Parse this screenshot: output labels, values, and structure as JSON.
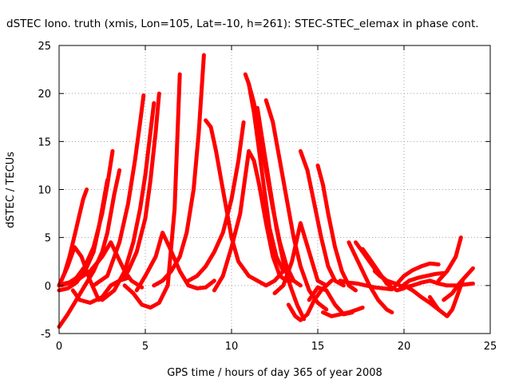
{
  "chart_data": {
    "type": "line",
    "title": "dSTEC Iono. truth (xmis, Lon=105, Lat=-10, h=261): STEC-STEC_elemax in phase cont.",
    "xlabel": "GPS time / hours of day 365 of year 2008",
    "ylabel": "dSTEC  / TECUs",
    "xlim": [
      0,
      25
    ],
    "ylim": [
      -5,
      25
    ],
    "xticks": [
      "0",
      "5",
      "10",
      "15",
      "20",
      "25"
    ],
    "yticks": [
      "-5",
      "0",
      "5",
      "10",
      "15",
      "20",
      "25"
    ],
    "grid": true,
    "legend": "none",
    "color": "#ff0000",
    "series": [
      {
        "x": [
          0.0,
          0.3,
          0.6,
          0.9,
          1.2,
          1.4,
          1.6
        ],
        "y": [
          0.0,
          1.2,
          3.0,
          5.2,
          7.5,
          9.0,
          10.0
        ]
      },
      {
        "x": [
          0.0,
          0.5,
          1.0,
          1.5,
          2.0,
          2.3,
          2.6,
          2.8
        ],
        "y": [
          -0.5,
          -0.3,
          0.3,
          1.5,
          3.5,
          6.0,
          9.0,
          11.0
        ]
      },
      {
        "x": [
          0.1,
          0.5,
          1.0,
          1.5,
          2.0,
          2.5,
          2.8,
          3.1
        ],
        "y": [
          0.0,
          0.2,
          0.8,
          2.0,
          4.0,
          7.5,
          10.5,
          14.0
        ]
      },
      {
        "x": [
          0.0,
          0.5,
          1.0,
          1.5,
          2.0,
          2.5,
          2.8,
          3.0,
          3.2,
          3.5
        ],
        "y": [
          -4.3,
          -3.0,
          -1.5,
          0.0,
          1.5,
          3.5,
          5.5,
          7.5,
          9.5,
          12.0
        ]
      },
      {
        "x": [
          0.0,
          0.5,
          0.9,
          1.3,
          1.8,
          2.3
        ],
        "y": [
          0.0,
          2.0,
          4.0,
          3.0,
          0.5,
          -1.5
        ]
      },
      {
        "x": [
          0.8,
          1.2,
          1.8,
          2.5,
          3.0,
          3.5,
          4.0
        ],
        "y": [
          -0.5,
          -1.5,
          -1.8,
          -1.2,
          0.0,
          0.5,
          0.8
        ]
      },
      {
        "x": [
          0.3,
          1.0,
          1.8,
          2.5,
          3.0,
          3.4,
          3.8,
          4.2,
          4.8
        ],
        "y": [
          0.2,
          0.5,
          1.5,
          3.0,
          4.5,
          3.0,
          1.5,
          0.5,
          -0.2
        ]
      },
      {
        "x": [
          2.0,
          2.8,
          3.5,
          4.0,
          4.4,
          4.7,
          4.9
        ],
        "y": [
          0.0,
          1.0,
          4.5,
          8.5,
          13.0,
          17.0,
          19.8
        ]
      },
      {
        "x": [
          2.5,
          3.2,
          3.8,
          4.3,
          4.7,
          5.0,
          5.2,
          5.5
        ],
        "y": [
          -1.5,
          -0.5,
          1.5,
          4.5,
          8.0,
          11.5,
          14.5,
          19.0
        ]
      },
      {
        "x": [
          3.0,
          3.5,
          4.0,
          4.5,
          5.0,
          5.3,
          5.6,
          5.8
        ],
        "y": [
          0.0,
          0.5,
          1.5,
          3.5,
          7.0,
          11.0,
          16.0,
          20.0
        ]
      },
      {
        "x": [
          3.8,
          4.3,
          4.8,
          5.3,
          5.8,
          6.3,
          6.7,
          7.0
        ],
        "y": [
          0.0,
          -0.8,
          -2.0,
          -2.3,
          -1.8,
          0.0,
          8.0,
          22.0
        ]
      },
      {
        "x": [
          4.5,
          5.0,
          5.6,
          6.0,
          6.4,
          7.0,
          7.5,
          8.0,
          8.5,
          9.0
        ],
        "y": [
          -0.5,
          1.0,
          3.0,
          5.5,
          4.0,
          1.5,
          0.0,
          -0.3,
          -0.2,
          0.5
        ]
      },
      {
        "x": [
          5.5,
          6.0,
          6.5,
          7.0,
          7.4,
          7.8,
          8.1,
          8.4
        ],
        "y": [
          0.0,
          0.5,
          1.5,
          3.0,
          5.5,
          10.0,
          16.0,
          24.0
        ]
      },
      {
        "x": [
          8.5,
          8.8,
          9.1,
          9.4,
          9.7,
          10.0,
          10.4,
          11.0,
          11.5,
          12.0,
          12.5,
          13.0
        ],
        "y": [
          17.2,
          16.5,
          14.0,
          11.0,
          8.0,
          5.0,
          2.5,
          1.0,
          0.5,
          0.0,
          0.5,
          1.5
        ]
      },
      {
        "x": [
          9.0,
          9.5,
          10.0,
          10.5,
          11.0,
          11.3,
          11.6,
          12.0,
          12.4,
          12.8,
          13.2,
          13.5
        ],
        "y": [
          -0.5,
          1.0,
          4.0,
          7.5,
          14.0,
          13.0,
          10.5,
          6.5,
          3.0,
          1.0,
          0.5,
          0.5
        ]
      },
      {
        "x": [
          7.5,
          8.0,
          8.5,
          9.0,
          9.5,
          10.0,
          10.4,
          10.7
        ],
        "y": [
          0.5,
          1.0,
          2.0,
          3.5,
          5.5,
          9.0,
          13.0,
          17.0
        ]
      },
      {
        "x": [
          10.8,
          11.0,
          11.3,
          11.6,
          11.9,
          12.2,
          12.6,
          13.0
        ],
        "y": [
          22.0,
          21.0,
          18.0,
          14.0,
          10.0,
          6.0,
          3.0,
          1.5
        ]
      },
      {
        "x": [
          11.0,
          11.3,
          11.6,
          12.0,
          12.4,
          12.8,
          13.2,
          13.6,
          14.0
        ],
        "y": [
          21.0,
          19.0,
          16.0,
          12.0,
          8.0,
          4.5,
          2.0,
          0.5,
          0.0
        ]
      },
      {
        "x": [
          11.5,
          11.8,
          12.2,
          12.6,
          13.0,
          13.4,
          13.8,
          14.2
        ],
        "y": [
          18.5,
          15.0,
          10.5,
          6.0,
          2.5,
          0.0,
          -2.0,
          -3.5
        ]
      },
      {
        "x": [
          12.0,
          12.4,
          12.8,
          13.2,
          13.6,
          14.0,
          14.5,
          15.0,
          15.5
        ],
        "y": [
          19.3,
          17.0,
          13.0,
          9.0,
          5.0,
          2.0,
          -0.5,
          -1.8,
          -2.5
        ]
      },
      {
        "x": [
          12.5,
          13.0,
          13.5,
          14.0,
          14.5,
          15.0,
          15.5
        ],
        "y": [
          -0.8,
          0.0,
          2.5,
          6.5,
          3.5,
          0.5,
          0.0
        ]
      },
      {
        "x": [
          13.3,
          13.7,
          14.0,
          14.4,
          14.8,
          15.2,
          15.8
        ],
        "y": [
          -2.0,
          -3.2,
          -3.6,
          -3.0,
          -1.5,
          -0.5,
          0.5
        ]
      },
      {
        "x": [
          14.0,
          14.4,
          14.8,
          15.2,
          15.6,
          16.0,
          16.5
        ],
        "y": [
          14.0,
          12.0,
          8.5,
          5.0,
          2.0,
          0.5,
          0.0
        ]
      },
      {
        "x": [
          15.0,
          15.3,
          15.6,
          16.0,
          16.4,
          16.8,
          17.2
        ],
        "y": [
          12.5,
          10.5,
          7.5,
          4.0,
          1.5,
          0.0,
          -0.5
        ]
      },
      {
        "x": [
          14.5,
          15.0,
          15.5,
          16.0,
          16.5,
          17.0
        ],
        "y": [
          -1.5,
          -0.2,
          -0.5,
          -2.0,
          -3.0,
          -2.8
        ]
      },
      {
        "x": [
          15.3,
          15.8,
          16.3,
          16.8,
          17.3,
          17.6
        ],
        "y": [
          -2.8,
          -3.2,
          -3.0,
          -2.8,
          -2.5,
          -2.3
        ]
      },
      {
        "x": [
          16.3,
          16.8,
          17.3,
          17.8,
          18.3,
          18.8,
          19.3
        ],
        "y": [
          0.5,
          0.3,
          0.2,
          0.0,
          -0.2,
          -0.3,
          -0.4
        ]
      },
      {
        "x": [
          16.8,
          17.2,
          17.6,
          18.0,
          18.5,
          19.0,
          19.3
        ],
        "y": [
          4.5,
          3.0,
          1.5,
          0.0,
          -1.5,
          -2.5,
          -2.8
        ]
      },
      {
        "x": [
          17.2,
          17.6,
          18.0,
          18.4,
          18.8,
          19.2
        ],
        "y": [
          4.5,
          3.5,
          2.5,
          1.5,
          0.8,
          0.2
        ]
      },
      {
        "x": [
          17.6,
          18.0,
          18.5,
          19.0,
          19.3,
          19.6,
          20.0
        ],
        "y": [
          3.8,
          2.8,
          1.5,
          0.2,
          -0.2,
          -0.5,
          -0.3
        ]
      },
      {
        "x": [
          18.3,
          18.6,
          19.0,
          19.5,
          20.0,
          20.5,
          21.0,
          21.5,
          22.0,
          22.5,
          23.0,
          23.5,
          24.0
        ],
        "y": [
          1.5,
          1.0,
          0.5,
          0.2,
          -0.2,
          0.0,
          0.3,
          0.5,
          0.2,
          0.0,
          0.0,
          0.1,
          0.2
        ]
      },
      {
        "x": [
          19.5,
          20.0,
          20.5,
          21.0,
          21.5,
          22.0
        ],
        "y": [
          0.0,
          1.0,
          1.6,
          2.0,
          2.3,
          2.2
        ]
      },
      {
        "x": [
          19.8,
          20.3,
          20.8,
          21.3,
          21.8,
          22.3
        ],
        "y": [
          -0.2,
          0.5,
          0.8,
          1.0,
          1.2,
          1.3
        ]
      },
      {
        "x": [
          20.0,
          20.5,
          21.0,
          21.5,
          22.0,
          22.5,
          22.8,
          23.1,
          23.4
        ],
        "y": [
          0.0,
          -0.5,
          -1.2,
          -1.8,
          -2.5,
          -3.2,
          -2.5,
          -1.0,
          0.5
        ]
      },
      {
        "x": [
          21.5,
          21.8,
          22.0
        ],
        "y": [
          -1.2,
          -2.0,
          -2.5
        ]
      },
      {
        "x": [
          22.3,
          22.8,
          23.2,
          23.5,
          23.8,
          24.0
        ],
        "y": [
          -1.5,
          -0.8,
          0.2,
          0.8,
          1.4,
          1.8
        ]
      },
      {
        "x": [
          22.0,
          22.5,
          23.0,
          23.3
        ],
        "y": [
          0.5,
          1.5,
          3.0,
          5.0
        ]
      }
    ]
  }
}
